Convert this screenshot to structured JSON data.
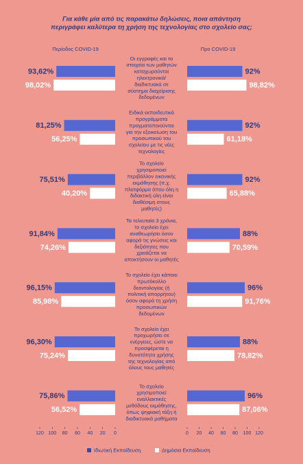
{
  "chart_data": {
    "type": "butterfly-bar",
    "title": [
      "Για κάθε μία από τις παρακάτω δηλώσεις, ποια απάντηση",
      "περιγράφει καλύτερα τη χρήση της τεχνολογίας στο σχολείο σας;"
    ],
    "categories": [
      [
        "Οι εγγραφές και τα",
        "στοιχεία των μαθητών",
        "καταχωρούνται",
        "ηλεκτρονικά/",
        "διαδικτυακά σε",
        "σύστημα διαχείρισης",
        "δεδομένων"
      ],
      [
        "Ειδικά εκπαιδευτικά",
        "προγράμματα",
        "πραγματοποιούνται",
        "για την εξοικείωση του",
        "προσωπικού του",
        "σχολείου με τις νέες",
        "τεχνολογίες"
      ],
      [
        "Το σχολείο",
        "χρησιμοποιεί",
        "περιβάλλον εικονικής",
        "εκμάθησης (π.χ.",
        "πλατφόρμα όπου όλη η",
        "διδακτική ύλη είναι",
        "διαθέσιμη στους",
        "μαθητές)"
      ],
      [
        "Τα τελευταία 3 χρόνια,",
        "το σχολείο έχει",
        "αναθεωρήσει όσον",
        "αφορά τις γνώσεις και",
        "δεξιότητες που",
        "χρειάζεται να",
        "αποκτήσουν οι μαθητές"
      ],
      [
        "Το σχολείο έχει κάποιο",
        "πρωτόκολλο",
        "δεοντολογίας (ή",
        "πολιτική απορρήτου)",
        "όσον αφορά τη χρήση",
        "προσωπικών",
        "δεδομένων"
      ],
      [
        "Το σχολείο έχει",
        "προχωρήσει σε",
        "ενέργειες, ώστε να",
        "προσφέρεται η",
        "δυνατότητα χρήσης",
        "της τεχνολογίας από",
        "όλους τους μαθητές"
      ],
      [
        "Το σχολείο",
        "χρησιμοποιεί",
        "εναλλακτικές",
        "μεθόδους εκμάθησης,",
        "όπως ψηφιακή τάξη ή",
        "διαδικτυακά μαθήματα"
      ]
    ],
    "series": [
      {
        "name": "Ιδιωτική Εκπαίδευση",
        "color": "#5667d2"
      },
      {
        "name": "Δημόσια Εκπαίδευση",
        "color": "#ffffff"
      }
    ],
    "panels": [
      {
        "title": "Περίοδος COVID-19",
        "direction": "left",
        "xlim": [
          0,
          120
        ],
        "xticks": [
          0,
          20,
          40,
          60,
          80,
          100,
          120
        ],
        "series": [
          {
            "values": [
              93.62,
              81.25,
              75.51,
              91.84,
              96.15,
              96.3,
              75.86
            ],
            "value_labels": [
              "93,62%",
              "81,25%",
              "75,51%",
              "91,84%",
              "96,15%",
              "96,30%",
              "75,86%"
            ]
          },
          {
            "values": [
              98.02,
              56.25,
              40.2,
              74.26,
              85.98,
              75.24,
              56.52
            ],
            "value_labels": [
              "98,02%",
              "56,25%",
              "40,20%",
              "74,26%",
              "85,98%",
              "75,24%",
              "56,52%"
            ]
          }
        ]
      },
      {
        "title": "Προ COVID-19",
        "direction": "right",
        "xlim": [
          0,
          120
        ],
        "xticks": [
          0,
          20,
          40,
          60,
          80,
          100,
          120
        ],
        "series": [
          {
            "values": [
              92,
              92,
              92,
              88,
              96,
              88,
              96
            ],
            "value_labels": [
              "92%",
              "92%",
              "92%",
              "88%",
              "96%",
              "88%",
              "96%"
            ]
          },
          {
            "values": [
              98.82,
              61.18,
              65.88,
              70.59,
              91.76,
              78.82,
              87.06
            ],
            "value_labels": [
              "98,82%",
              "61,18%",
              "65,88%",
              "70,59%",
              "91,76%",
              "78,82%",
              "87,06%"
            ]
          }
        ]
      }
    ]
  }
}
